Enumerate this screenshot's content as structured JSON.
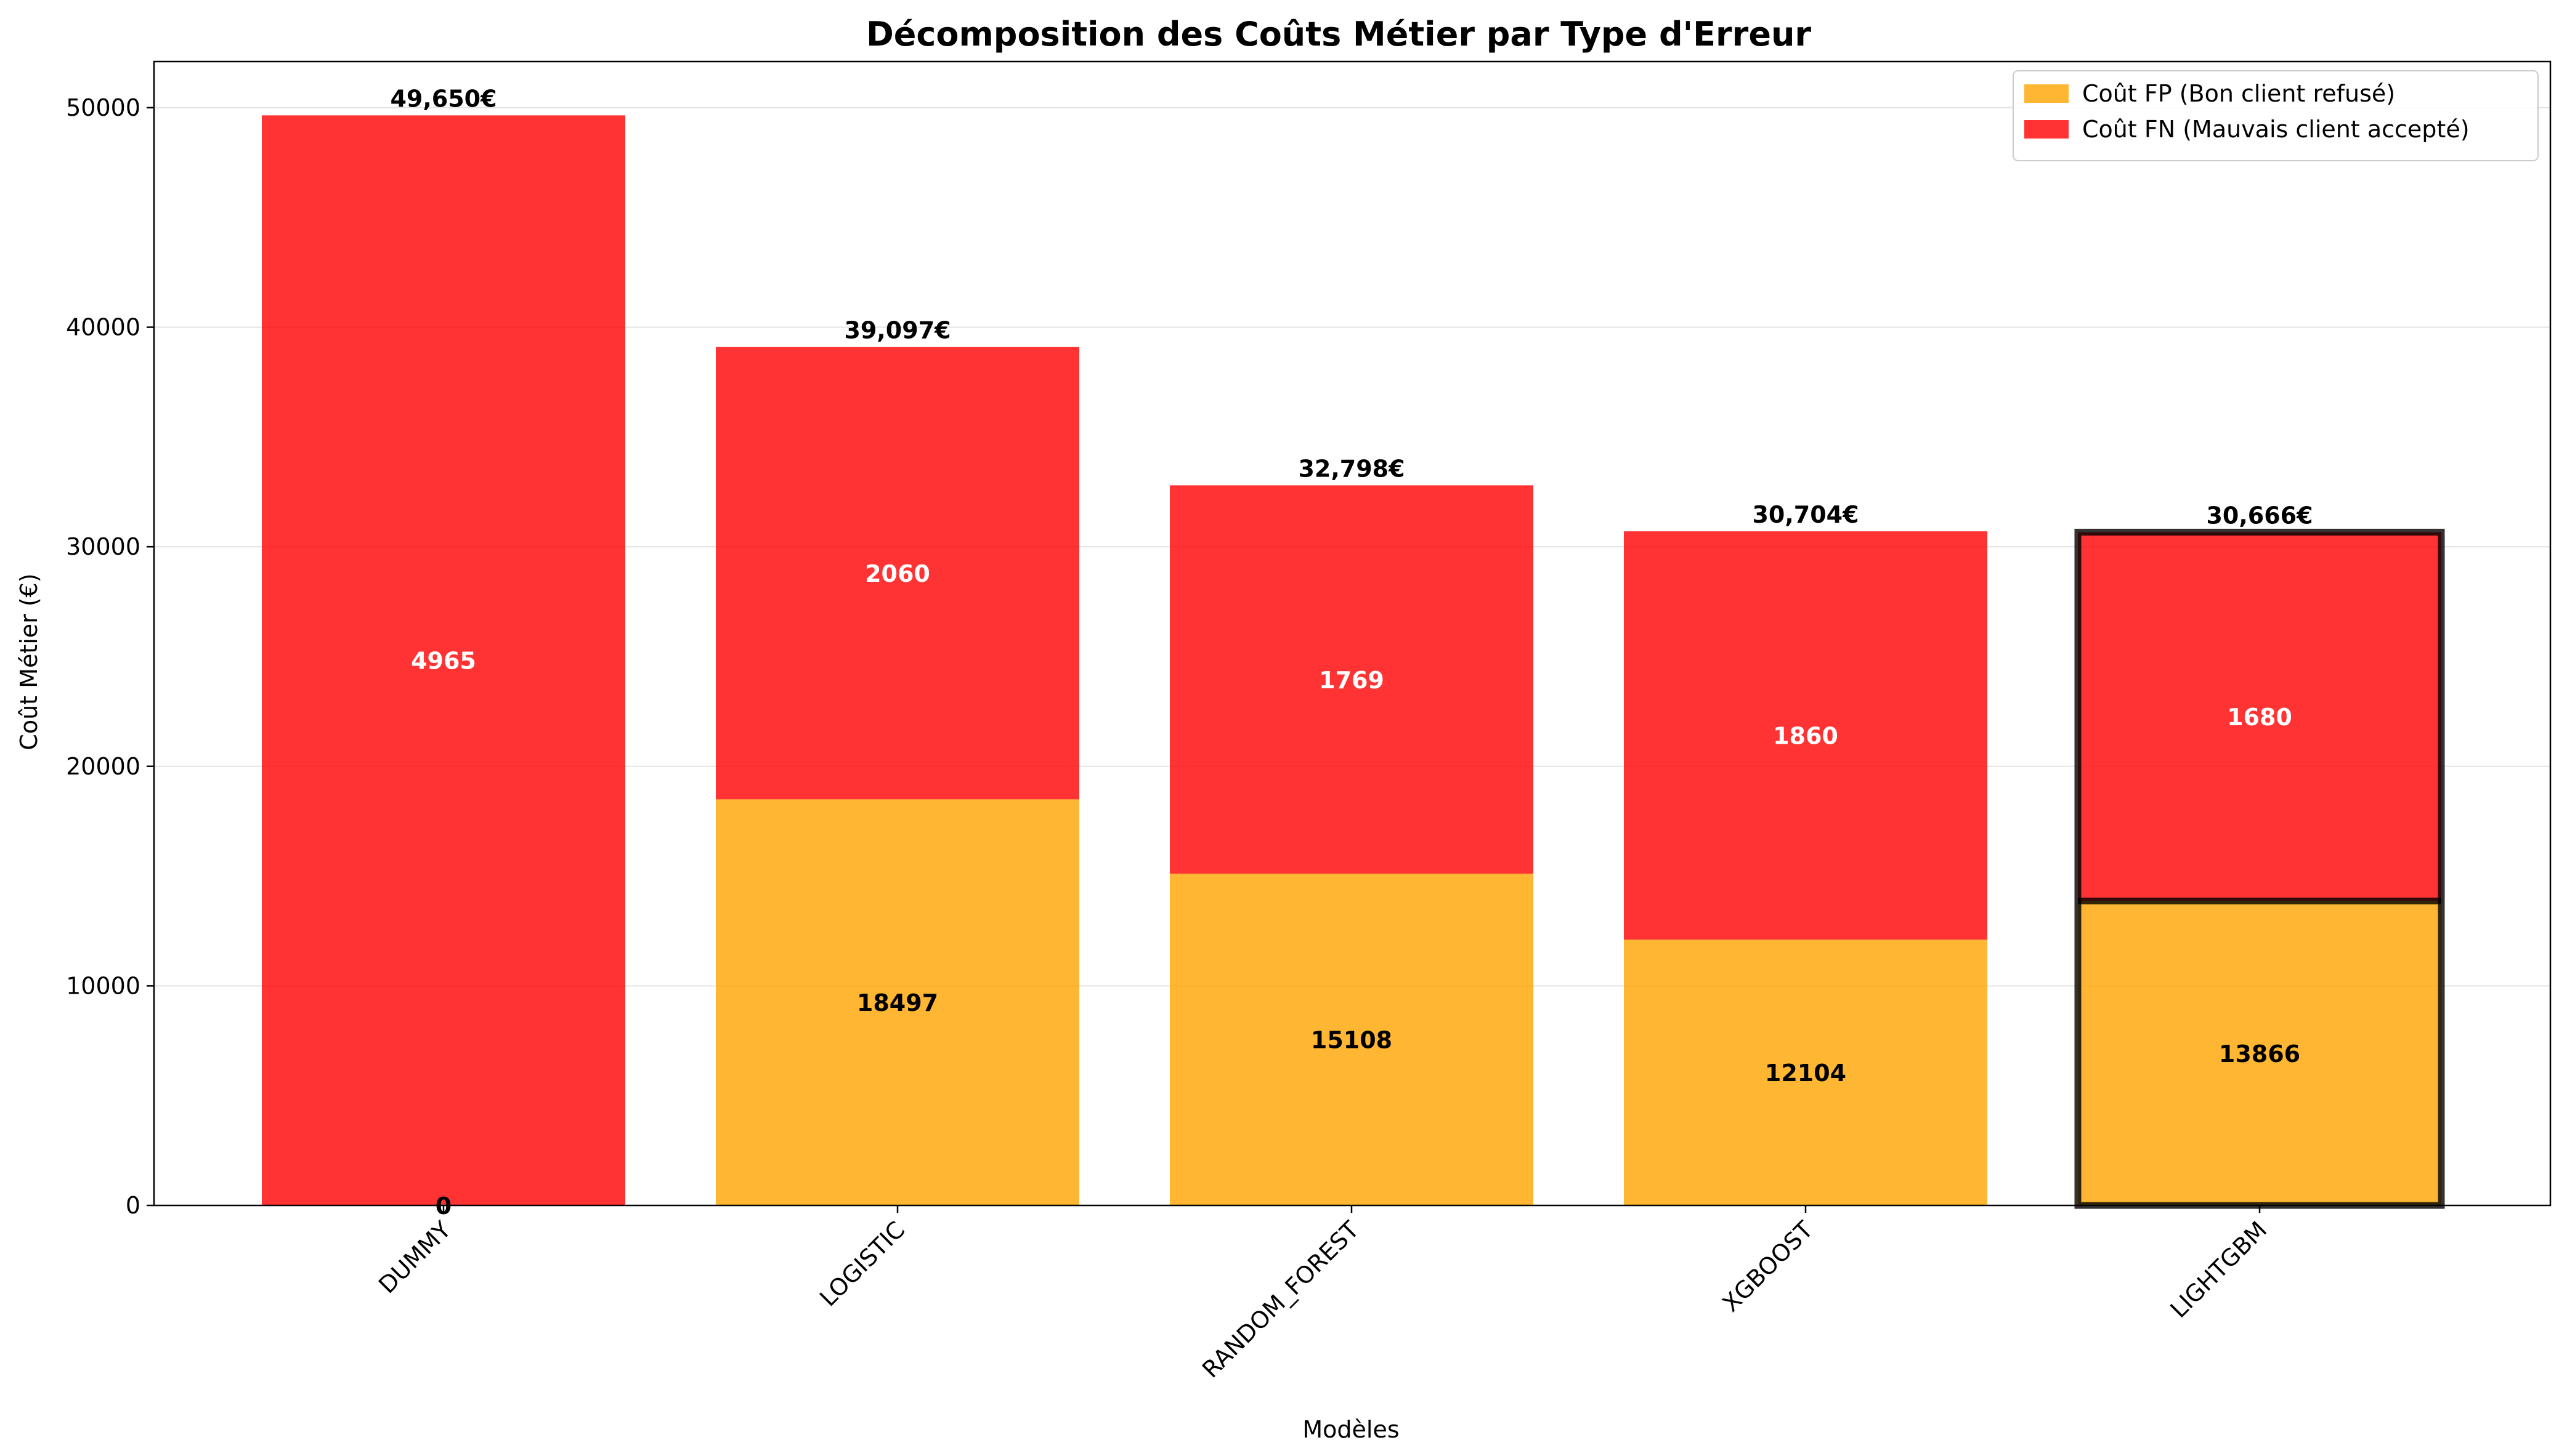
{
  "chart_data": {
    "type": "bar",
    "stacked": true,
    "title": "Décomposition des Coûts Métier par Type d'Erreur",
    "xlabel": "Modèles",
    "ylabel": "Coût Métier (€)",
    "ylim": [
      0,
      52100
    ],
    "yticks": [
      0,
      10000,
      20000,
      30000,
      40000,
      50000
    ],
    "grid": "horizontal",
    "legend_position": "top-right",
    "categories": [
      "DUMMY",
      "LOGISTIC",
      "RANDOM_FOREST",
      "XGBOOST",
      "LIGHTGBM"
    ],
    "series": [
      {
        "name": "Coût FP (Bon client refusé)",
        "color": "#ffa500",
        "values": [
          0,
          18497,
          15108,
          12104,
          13866
        ],
        "labels": [
          "0",
          "18497",
          "15108",
          "12104",
          "13866"
        ],
        "label_color": "#000000"
      },
      {
        "name": "Coût FN (Mauvais client accepté)",
        "color": "#ff0000",
        "values": [
          49650,
          20600,
          17690,
          18600,
          16800
        ],
        "labels": [
          "4965",
          "2060",
          "1769",
          "1860",
          "1680"
        ],
        "label_color": "#ffffff"
      }
    ],
    "totals": [
      "49,650€",
      "39,097€",
      "32,798€",
      "30,704€",
      "30,666€"
    ],
    "highlighted_category": "LIGHTGBM"
  }
}
